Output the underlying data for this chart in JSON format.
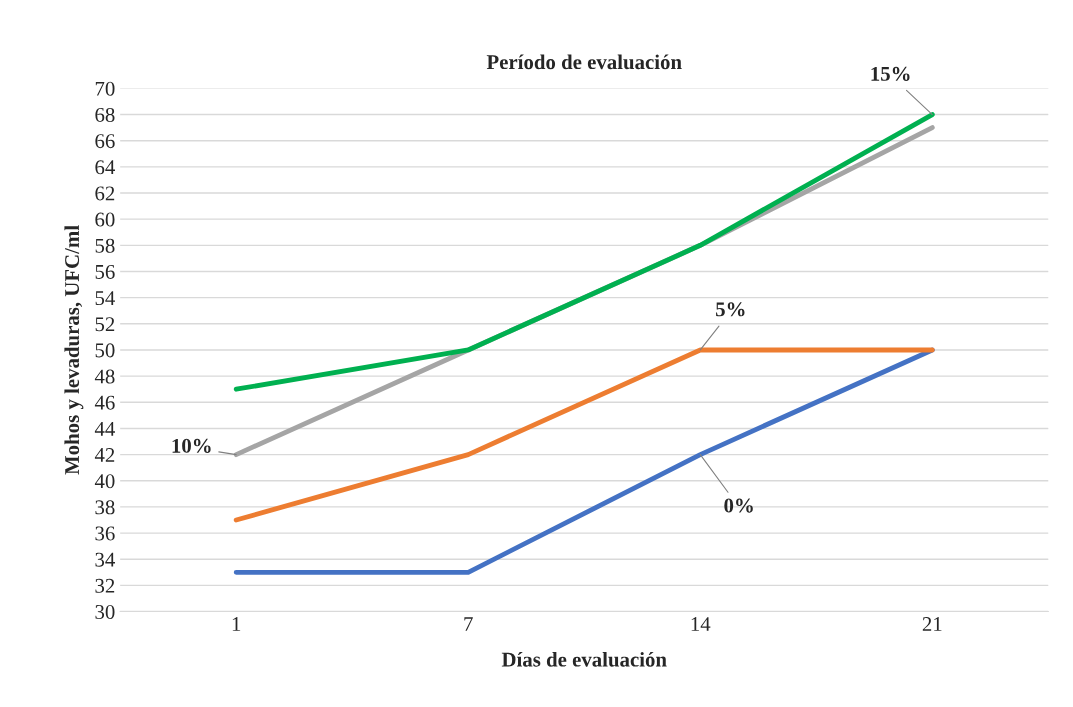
{
  "chart_data": {
    "type": "line",
    "title": "Período de evaluación",
    "xlabel": "Días de evaluación",
    "ylabel": "Mohos y levaduras, UFC/ml",
    "categories": [
      "1",
      "7",
      "14",
      "21"
    ],
    "series": [
      {
        "name": "0%",
        "color": "#4472c4",
        "values": [
          33,
          33,
          42,
          50
        ]
      },
      {
        "name": "5%",
        "color": "#ed7d31",
        "values": [
          37,
          42,
          50,
          50
        ]
      },
      {
        "name": "10%",
        "color": "#a5a5a5",
        "values": [
          42,
          50,
          58,
          67
        ]
      },
      {
        "name": "15%",
        "color": "#00b050",
        "values": [
          47,
          50,
          58,
          68
        ]
      }
    ],
    "ylim": [
      30,
      70
    ],
    "yticks": [
      30,
      32,
      34,
      36,
      38,
      40,
      42,
      44,
      46,
      48,
      50,
      52,
      54,
      56,
      58,
      60,
      62,
      64,
      66,
      68,
      70
    ],
    "grid": "y",
    "legend": false,
    "marker": "none",
    "line_style": "solid"
  }
}
